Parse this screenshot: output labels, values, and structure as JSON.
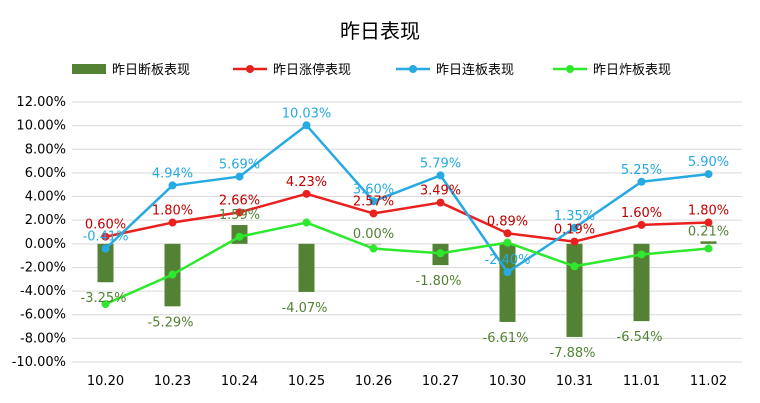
{
  "chart_data": {
    "type": "bar",
    "title": "昨日表现",
    "xlabel": "",
    "ylabel": "",
    "categories": [
      "10.20",
      "10.23",
      "10.24",
      "10.25",
      "10.26",
      "10.27",
      "10.30",
      "10.31",
      "11.01",
      "11.02"
    ],
    "ylim": [
      -10,
      12
    ],
    "ytick_step": 2,
    "yticks": [
      "-10.00%",
      "-8.00%",
      "-6.00%",
      "-4.00%",
      "-2.00%",
      "0.00%",
      "2.00%",
      "4.00%",
      "6.00%",
      "8.00%",
      "10.00%",
      "12.00%"
    ],
    "grid": true,
    "legend_position": "top",
    "series": [
      {
        "name": "昨日断板表现",
        "type": "bar",
        "color": "#548235",
        "label_color": "#548235",
        "values": [
          -3.25,
          -5.29,
          1.59,
          -4.07,
          0.0,
          -1.8,
          -6.61,
          -7.88,
          -6.54,
          0.21
        ],
        "labels": [
          "-3.25%",
          "-5.29%",
          "1.59%",
          "-4.07%",
          "0.00%",
          "-1.80%",
          "-6.61%",
          "-7.88%",
          "-6.54%",
          "0.21%"
        ]
      },
      {
        "name": "昨日涨停表现",
        "type": "line",
        "color": "#E8201E",
        "label_color": "#C00000",
        "values": [
          0.6,
          1.8,
          2.66,
          4.23,
          2.57,
          3.49,
          0.89,
          0.19,
          1.6,
          1.8
        ],
        "labels": [
          "0.60%",
          "1.80%",
          "2.66%",
          "4.23%",
          "2.57%",
          "3.49%",
          "0.89%",
          "0.19%",
          "1.60%",
          "1.80%"
        ]
      },
      {
        "name": "昨日连板表现",
        "type": "line",
        "color": "#27A9E1",
        "label_color": "#27A9E1",
        "values": [
          -0.41,
          4.94,
          5.69,
          10.03,
          3.6,
          5.79,
          -2.4,
          1.35,
          5.25,
          5.9
        ],
        "labels": [
          "-0.41%",
          "4.94%",
          "5.69%",
          "10.03%",
          "3.60%",
          "5.79%",
          "-2.40%",
          "1.35%",
          "5.25%",
          "5.90%"
        ]
      },
      {
        "name": "昨日炸板表现",
        "type": "line",
        "color": "#2EE82E",
        "label_color": "#2EB82E",
        "values": [
          -5.1,
          -2.6,
          0.6,
          1.8,
          -0.4,
          -0.8,
          0.1,
          -1.9,
          -0.9,
          -0.4
        ],
        "labels": []
      }
    ]
  }
}
